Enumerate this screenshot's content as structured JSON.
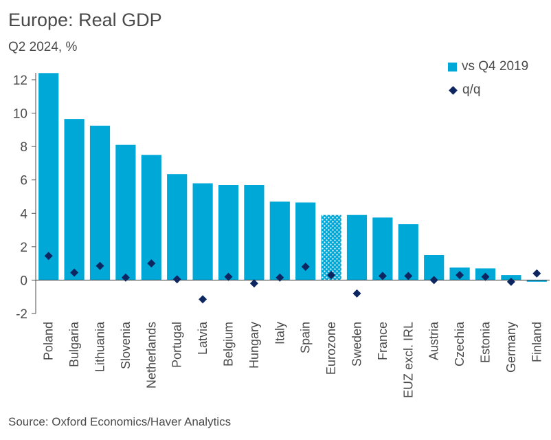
{
  "chart_data": {
    "type": "bar",
    "title": "Europe: Real GDP",
    "subtitle": "Q2 2024, %",
    "source": "Source: Oxford Economics/Haver Analytics",
    "xlabel": "",
    "ylabel": "",
    "ylim": [
      -2,
      12
    ],
    "yticks": [
      -2,
      0,
      2,
      4,
      6,
      8,
      10,
      12
    ],
    "ytick_labels": [
      "-2",
      "0",
      "2",
      "4",
      "6",
      "8",
      "10",
      "12"
    ],
    "grid": false,
    "legend_position": "top-right",
    "categories": [
      "Poland",
      "Bulgaria",
      "Lithuania",
      "Slovenia",
      "Netherlands",
      "Portugal",
      "Latvia",
      "Belgium",
      "Hungary",
      "Italy",
      "Spain",
      "Eurozone",
      "Sweden",
      "France",
      "EUZ excl. IRL",
      "Austria",
      "Czechia",
      "Estonia",
      "Germany",
      "Finland"
    ],
    "highlighted_category": "Eurozone",
    "series": [
      {
        "name": "vs Q4 2019",
        "type": "bar",
        "color": "#00a8d8",
        "values": [
          12.4,
          9.65,
          9.25,
          8.1,
          7.5,
          6.35,
          5.8,
          5.7,
          5.7,
          4.7,
          4.65,
          3.9,
          3.9,
          3.75,
          3.35,
          1.5,
          0.75,
          0.7,
          0.3,
          -0.1
        ]
      },
      {
        "name": "q/q",
        "type": "scatter",
        "marker": "diamond",
        "color": "#0d2660",
        "values": [
          1.45,
          0.45,
          0.85,
          0.15,
          1.0,
          0.05,
          -1.15,
          0.2,
          -0.2,
          0.15,
          0.8,
          0.3,
          -0.8,
          0.25,
          0.25,
          0.0,
          0.3,
          0.2,
          -0.1,
          0.4
        ]
      }
    ]
  }
}
